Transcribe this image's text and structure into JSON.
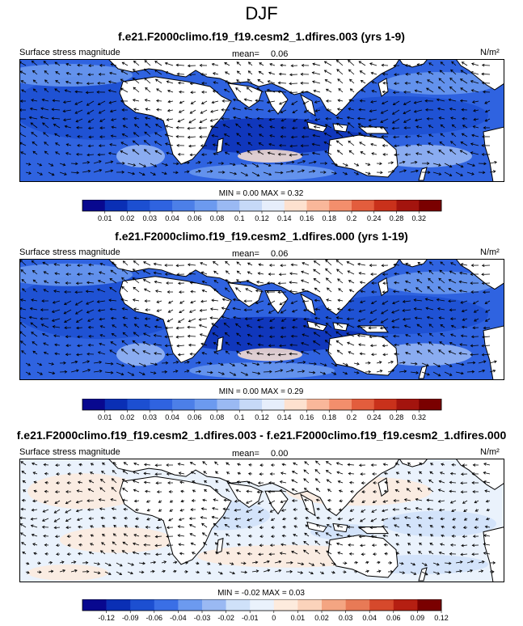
{
  "figure_title": "DJF",
  "colors": {
    "bg_bottom": "#ffffff",
    "land": "#ffffff",
    "frame": "#000000"
  },
  "chart_data": [
    {
      "type": "heatmap",
      "title": "f.e21.F2000climo.f19_f19.cesm2_1.dfires.003 (yrs 1-9)",
      "left_label": "Surface stress magnitude",
      "mean_label": "mean=",
      "mean_value": "0.06",
      "units": "N/m²",
      "stats": {
        "min_label": "MIN =",
        "min": "0.00",
        "max_label": "MAX =",
        "max": "0.32"
      },
      "colorbar": {
        "levels": [
          "0.01",
          "0.02",
          "0.03",
          "0.04",
          "0.06",
          "0.08",
          "0.1",
          "0.12",
          "0.14",
          "0.16",
          "0.18",
          "0.2",
          "0.24",
          "0.28",
          "0.32"
        ],
        "colors": [
          "#08088f",
          "#0a2fb5",
          "#1c4fd1",
          "#2f63e0",
          "#4c7fe8",
          "#6c9aef",
          "#9ab9f3",
          "#c6d9f7",
          "#e6eefb",
          "#fde1cf",
          "#f9b79a",
          "#f38e6c",
          "#e35d3d",
          "#c9311b",
          "#a3140e",
          "#7a0000"
        ]
      },
      "background_color": "#2f63e0"
    },
    {
      "type": "heatmap",
      "title": "f.e21.F2000climo.f19_f19.cesm2_1.dfires.000 (yrs 1-19)",
      "left_label": "Surface stress magnitude",
      "mean_label": "mean=",
      "mean_value": "0.06",
      "units": "N/m²",
      "stats": {
        "min_label": "MIN =",
        "min": "0.00",
        "max_label": "MAX =",
        "max": "0.29"
      },
      "colorbar": {
        "levels": [
          "0.01",
          "0.02",
          "0.03",
          "0.04",
          "0.06",
          "0.08",
          "0.1",
          "0.12",
          "0.14",
          "0.16",
          "0.18",
          "0.2",
          "0.24",
          "0.28",
          "0.32"
        ],
        "colors": [
          "#08088f",
          "#0a2fb5",
          "#1c4fd1",
          "#2f63e0",
          "#4c7fe8",
          "#6c9aef",
          "#9ab9f3",
          "#c6d9f7",
          "#e6eefb",
          "#fde1cf",
          "#f9b79a",
          "#f38e6c",
          "#e35d3d",
          "#c9311b",
          "#a3140e",
          "#7a0000"
        ]
      },
      "background_color": "#2f63e0"
    },
    {
      "type": "heatmap",
      "title": "f.e21.F2000climo.f19_f19.cesm2_1.dfires.003 - f.e21.F2000climo.f19_f19.cesm2_1.dfires.000",
      "left_label": "Surface stress magnitude",
      "mean_label": "mean=",
      "mean_value": "0.00",
      "units": "N/m²",
      "stats": {
        "min_label": "MIN =",
        "min": "-0.02",
        "max_label": "MAX =",
        "max": "0.03"
      },
      "colorbar": {
        "levels": [
          "-0.12",
          "-0.09",
          "-0.06",
          "-0.04",
          "-0.03",
          "-0.02",
          "-0.01",
          "0",
          "0.01",
          "0.02",
          "0.03",
          "0.04",
          "0.06",
          "0.09",
          "0.12"
        ],
        "colors": [
          "#08088f",
          "#0a2fb5",
          "#1c4fd1",
          "#3a6fe6",
          "#6c9aef",
          "#9ab9f3",
          "#cfe1f9",
          "#eaf2fc",
          "#fdebdd",
          "#fbd3bb",
          "#f4a582",
          "#e87a56",
          "#d6492c",
          "#b51f12",
          "#7a0000"
        ]
      },
      "background_color": "#eaf2fc"
    }
  ]
}
